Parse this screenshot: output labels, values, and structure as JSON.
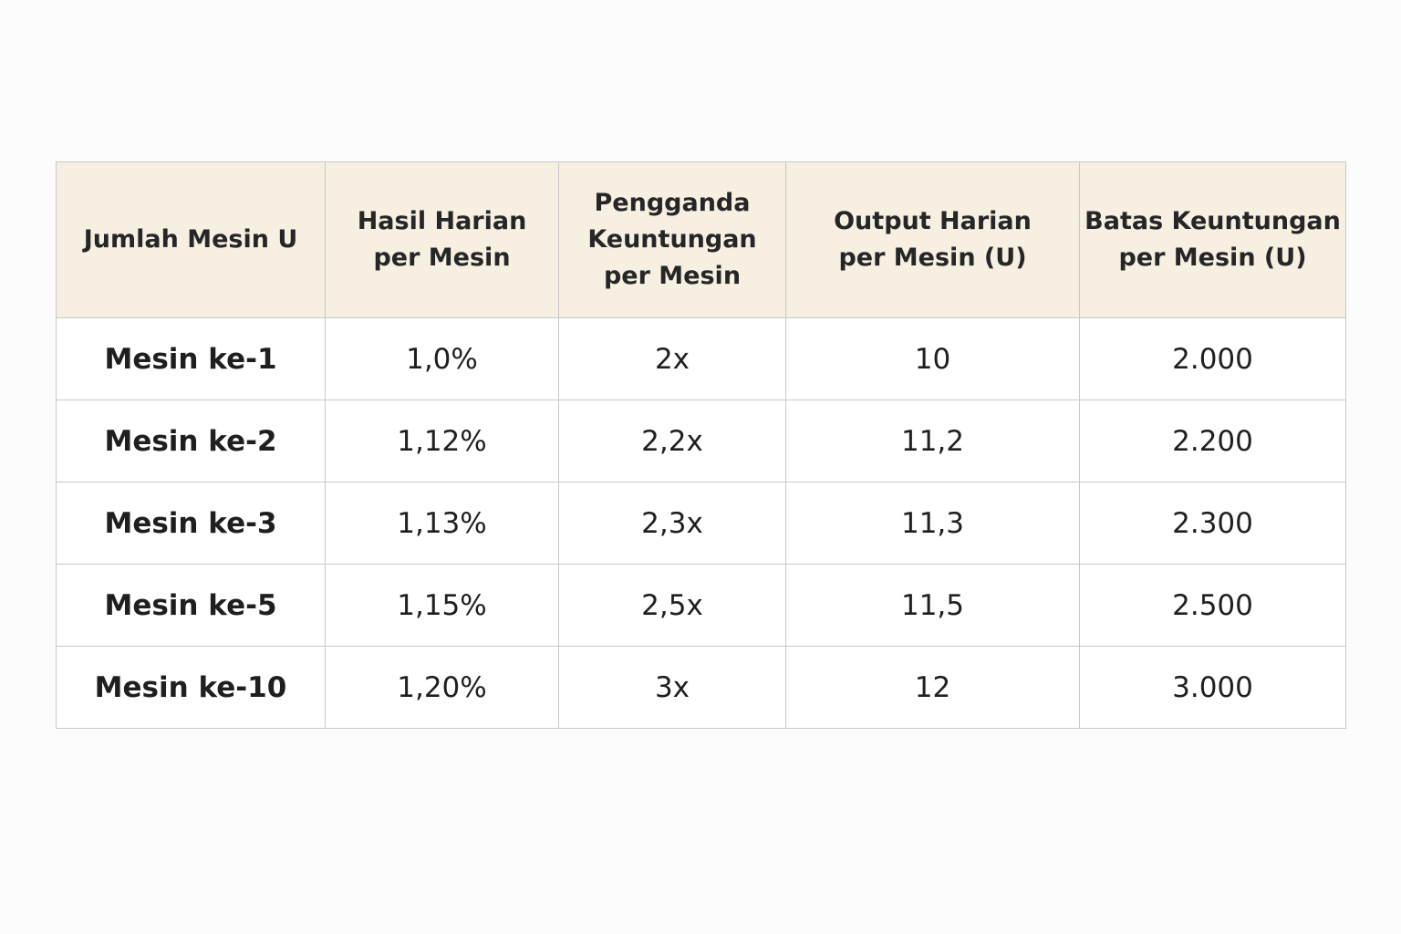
{
  "table": {
    "headers": [
      [
        "Jumlah Mesin U"
      ],
      [
        "Hasil Harian",
        "per Mesin"
      ],
      [
        "Pengganda",
        "Keuntungan",
        "per Mesin"
      ],
      [
        "Output Harian",
        "per Mesin (U)"
      ],
      [
        "Batas Keuntungan",
        "per Mesin (U)"
      ]
    ],
    "rows": [
      [
        "Mesin ke-1",
        "1,0%",
        "2x",
        "10",
        "2.000"
      ],
      [
        "Mesin ke-2",
        "1,12%",
        "2,2x",
        "11,2",
        "2.200"
      ],
      [
        "Mesin ke-3",
        "1,13%",
        "2,3x",
        "11,3",
        "2.300"
      ],
      [
        "Mesin ke-5",
        "1,15%",
        "2,5x",
        "11,5",
        "2.500"
      ],
      [
        "Mesin ke-10",
        "1,20%",
        "3x",
        "12",
        "3.000"
      ]
    ]
  }
}
